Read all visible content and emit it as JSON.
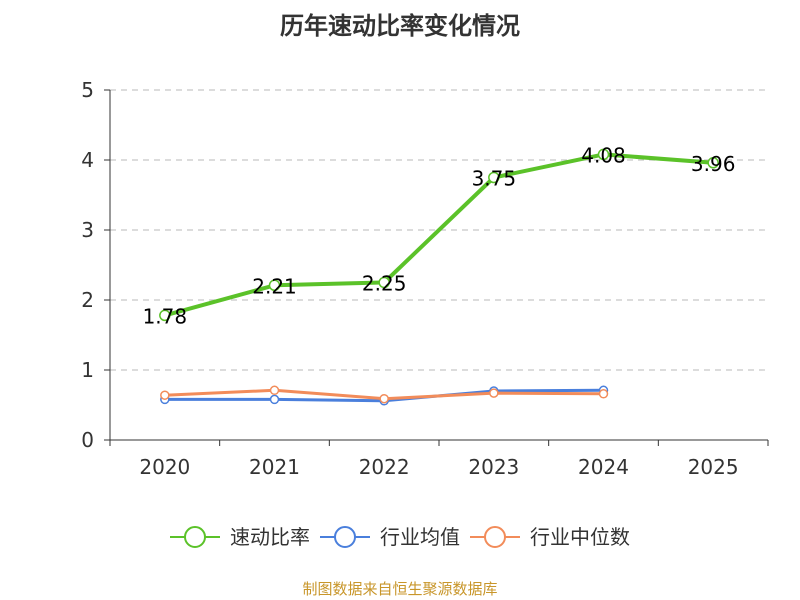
{
  "chart_data": {
    "type": "line",
    "title": "历年速动比率变化情况",
    "categories": [
      "2020",
      "2021",
      "2022",
      "2023",
      "2024",
      "2025"
    ],
    "ylim": [
      0,
      5
    ],
    "yticks": [
      "0",
      "1",
      "2",
      "3",
      "4",
      "5"
    ],
    "grid": true,
    "legend_position": "bottom",
    "series": [
      {
        "name": "速动比率",
        "color": "#5bc229",
        "values": [
          1.78,
          2.21,
          2.25,
          3.75,
          4.08,
          3.96
        ],
        "labels": [
          "1.78",
          "2.21",
          "2.25",
          "3.75",
          "4.08",
          "3.96"
        ]
      },
      {
        "name": "行业均值",
        "color": "#4a7fdc",
        "values": [
          0.58,
          0.58,
          0.56,
          0.7,
          0.71,
          null
        ]
      },
      {
        "name": "行业中位数",
        "color": "#f28c5a",
        "values": [
          0.64,
          0.71,
          0.59,
          0.67,
          0.66,
          null
        ]
      }
    ]
  },
  "source_note": "制图数据来自恒生聚源数据库"
}
